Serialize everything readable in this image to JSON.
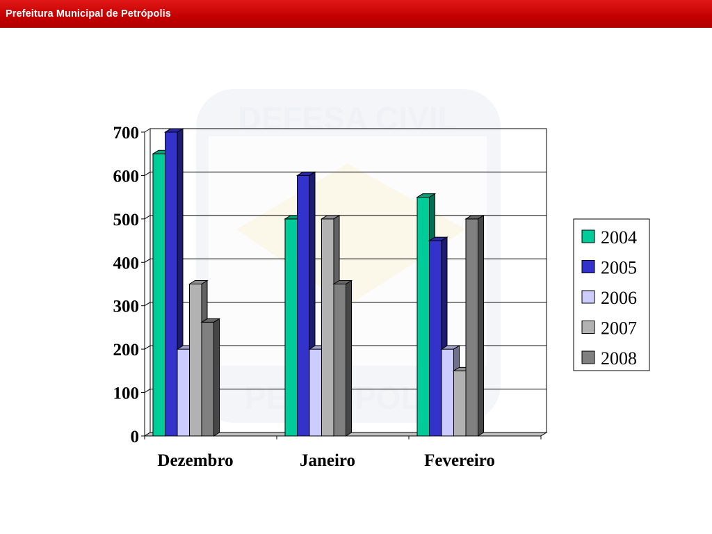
{
  "header": {
    "title": "Prefeitura Municipal de Petrópolis"
  },
  "watermark": {
    "top_text": "DEFESA CIVIL",
    "bottom_text": "PETRÓPOLIS"
  },
  "colors": {
    "header_red": "#c40000",
    "2004": "#00cc99",
    "2005": "#3333cc",
    "2006": "#ccccff",
    "2007": "#b2b2b2",
    "2008": "#808080"
  },
  "chart_data": {
    "type": "bar",
    "categories": [
      "Dezembro",
      "Janeiro",
      "Fevereiro"
    ],
    "series": [
      {
        "name": "2004",
        "values": [
          650,
          500,
          550
        ],
        "color": "#00cc99"
      },
      {
        "name": "2005",
        "values": [
          700,
          600,
          450
        ],
        "color": "#3333cc"
      },
      {
        "name": "2006",
        "values": [
          200,
          200,
          200
        ],
        "color": "#ccccff"
      },
      {
        "name": "2007",
        "values": [
          350,
          500,
          150
        ],
        "color": "#b2b2b2"
      },
      {
        "name": "2008",
        "values": [
          262,
          350,
          500
        ],
        "color": "#808080"
      }
    ],
    "yticks": [
      "0",
      "100",
      "200",
      "300",
      "400",
      "500",
      "600",
      "700"
    ],
    "ylim": [
      0,
      700
    ],
    "grid": true,
    "legend_position": "right",
    "style": "3d-column"
  }
}
